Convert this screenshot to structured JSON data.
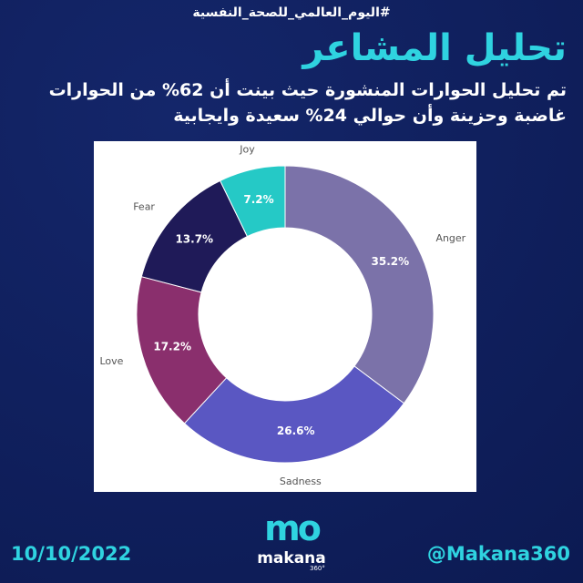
{
  "header": {
    "hashtag": "#اليوم_العالمي_للصحة_النفسية",
    "title": "تحليل المشاعر",
    "subtitle": [
      "تم تحليل الحوارات المنشورة حيث بينت أن 62% من الحوارات",
      "غاضبة وحزينة وأن حوالي 24% سعيدة وايجابية"
    ]
  },
  "chart_data": {
    "type": "donut",
    "categories": [
      "Anger",
      "Sadness",
      "Love",
      "Fear",
      "Joy"
    ],
    "values": [
      35.2,
      26.6,
      17.2,
      13.7,
      7.2
    ],
    "value_labels": [
      "35.2%",
      "26.6%",
      "17.2%",
      "13.7%",
      "7.2%"
    ],
    "colors": [
      "#7b72a9",
      "#5a57c2",
      "#8a2f6d",
      "#1f1a58",
      "#25c9c6"
    ]
  },
  "footer": {
    "date": "10/10/2022",
    "handle": "@Makana360",
    "logo": {
      "mark": "mo",
      "name": "makana",
      "sub": "360°"
    }
  }
}
